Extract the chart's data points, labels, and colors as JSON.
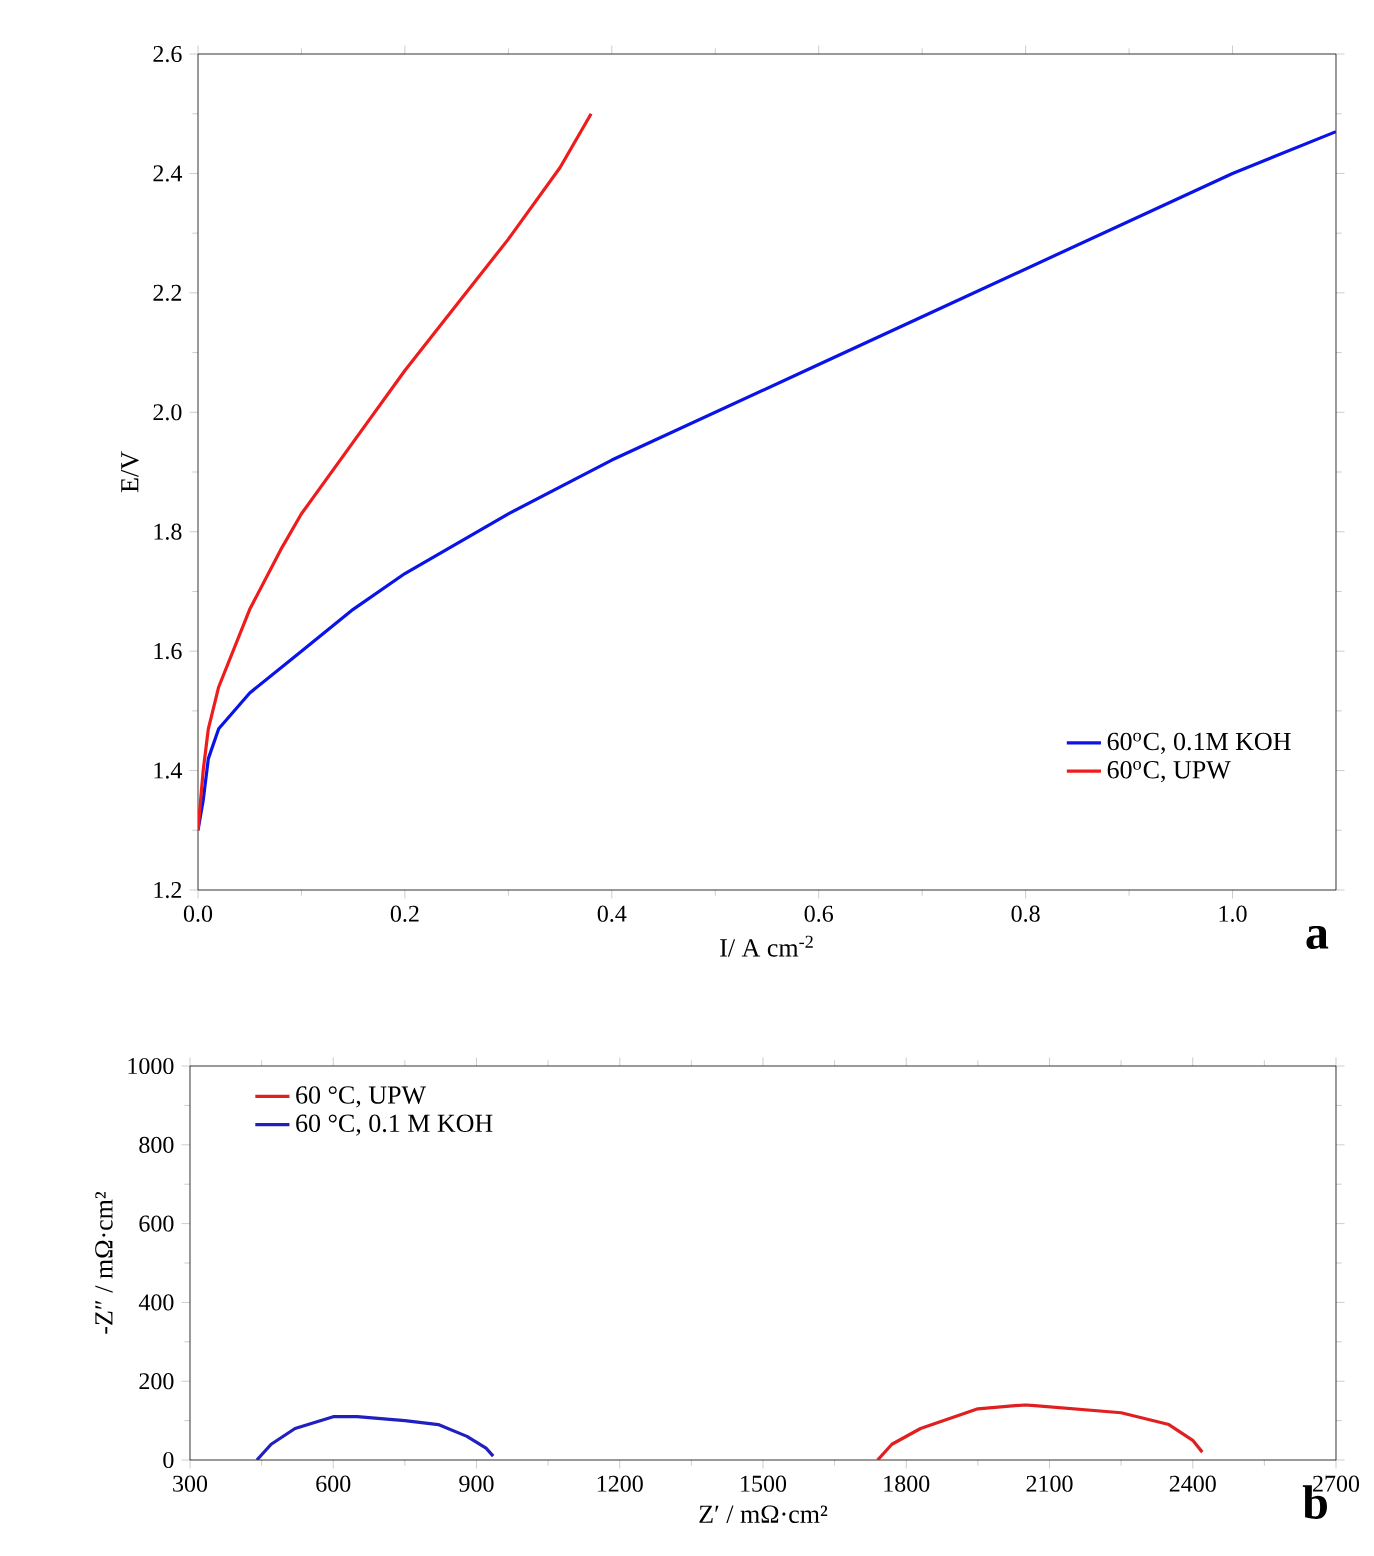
{
  "chart_data": [
    {
      "type": "line",
      "xlabel": "I/ A cm$^{-2}$",
      "ylabel": "E/V",
      "xlim": [
        0,
        1.1
      ],
      "ylim": [
        1.2,
        2.6
      ],
      "xticks": [
        {
          "value": 0,
          "label": "0.0"
        },
        0.2,
        0.4,
        0.6,
        0.8,
        {
          "value": 1,
          "label": "1.0"
        }
      ],
      "yticks": [
        1.2,
        1.4,
        1.6,
        1.8,
        {
          "value": 2,
          "label": "2.0"
        },
        2.2,
        2.4,
        2.6
      ],
      "legend": "bottom right",
      "marker": "none",
      "annotations": [
        "a"
      ],
      "series": [
        {
          "name": "60$^{o}$C, 0.1M KOH",
          "color": "#0a14e6",
          "x": [
            0,
            0.005,
            0.01,
            0.02,
            0.05,
            0.1,
            0.15,
            0.2,
            0.3,
            0.4,
            0.5,
            0.6,
            0.7,
            0.8,
            0.9,
            1.0,
            1.1
          ],
          "values": [
            1.3,
            1.35,
            1.42,
            1.47,
            1.53,
            1.6,
            1.67,
            1.73,
            1.83,
            1.92,
            2.0,
            2.08,
            2.16,
            2.24,
            2.32,
            2.4,
            2.47
          ]
        },
        {
          "name": "60$^{o}$C, UPW",
          "color": "#ee1c1c",
          "x": [
            0,
            0.005,
            0.01,
            0.02,
            0.05,
            0.08,
            0.1,
            0.15,
            0.2,
            0.25,
            0.3,
            0.35,
            0.38
          ],
          "values": [
            1.3,
            1.4,
            1.47,
            1.54,
            1.67,
            1.77,
            1.83,
            1.95,
            2.07,
            2.18,
            2.29,
            2.41,
            2.5
          ]
        }
      ]
    },
    {
      "type": "line",
      "xlabel": "Z′ / mΩ·cm²",
      "ylabel": "-Z″ / mΩ·cm²",
      "xlim": [
        300,
        2700
      ],
      "ylim": [
        0,
        1000
      ],
      "xticks": [
        300,
        600,
        900,
        1200,
        1500,
        1800,
        2100,
        2400,
        2700
      ],
      "yticks": [
        0,
        200,
        400,
        600,
        800,
        1000
      ],
      "legend": "top left",
      "marker": "none",
      "annotations": [
        "b"
      ],
      "series": [
        {
          "name": "60 °C, UPW",
          "color": "#e02020",
          "x": [
            1740,
            1770,
            1830,
            1950,
            2050,
            2150,
            2250,
            2350,
            2400,
            2420
          ],
          "values": [
            0,
            40,
            80,
            130,
            140,
            130,
            120,
            90,
            50,
            20
          ]
        },
        {
          "name": "60 °C, 0.1 M KOH",
          "color": "#2020c0",
          "x": [
            440,
            470,
            520,
            600,
            650,
            750,
            820,
            880,
            920,
            935
          ],
          "values": [
            0,
            40,
            80,
            110,
            110,
            100,
            90,
            60,
            30,
            10
          ]
        }
      ]
    }
  ]
}
